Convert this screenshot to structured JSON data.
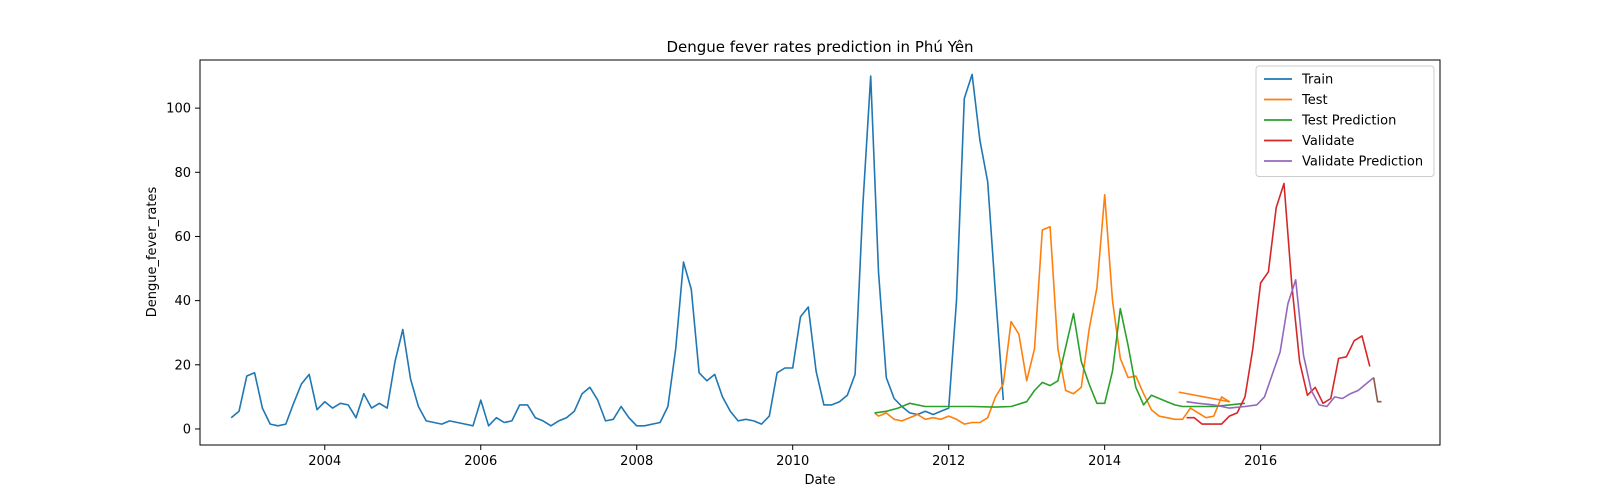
{
  "chart_data": {
    "type": "line",
    "title": "Dengue fever rates prediction in Phú Yên",
    "xlabel": "Date",
    "ylabel": "Dengue_fever_rates",
    "xlim": [
      2002.4,
      2018.3
    ],
    "ylim": [
      -5,
      115
    ],
    "x_ticks": [
      2004,
      2006,
      2008,
      2010,
      2012,
      2014,
      2016
    ],
    "y_ticks": [
      0,
      20,
      40,
      60,
      80,
      100
    ],
    "grid": false,
    "legend_position": "top-right",
    "series": [
      {
        "name": "Train",
        "color": "#1f77b4",
        "points": [
          [
            2002.8,
            3.5
          ],
          [
            2002.9,
            5.5
          ],
          [
            2003.0,
            16.5
          ],
          [
            2003.1,
            17.5
          ],
          [
            2003.2,
            6.5
          ],
          [
            2003.3,
            1.5
          ],
          [
            2003.4,
            1.0
          ],
          [
            2003.5,
            1.5
          ],
          [
            2003.6,
            8.0
          ],
          [
            2003.7,
            14.0
          ],
          [
            2003.8,
            17.0
          ],
          [
            2003.9,
            6.0
          ],
          [
            2004.0,
            8.5
          ],
          [
            2004.1,
            6.5
          ],
          [
            2004.2,
            8.0
          ],
          [
            2004.3,
            7.5
          ],
          [
            2004.4,
            3.5
          ],
          [
            2004.5,
            11.0
          ],
          [
            2004.6,
            6.5
          ],
          [
            2004.7,
            8.0
          ],
          [
            2004.8,
            6.5
          ],
          [
            2004.9,
            21.0
          ],
          [
            2005.0,
            31.0
          ],
          [
            2005.1,
            15.5
          ],
          [
            2005.2,
            7.0
          ],
          [
            2005.3,
            2.5
          ],
          [
            2005.4,
            2.0
          ],
          [
            2005.5,
            1.5
          ],
          [
            2005.6,
            2.5
          ],
          [
            2005.7,
            2.0
          ],
          [
            2005.8,
            1.5
          ],
          [
            2005.9,
            1.0
          ],
          [
            2006.0,
            9.0
          ],
          [
            2006.1,
            1.0
          ],
          [
            2006.2,
            3.5
          ],
          [
            2006.3,
            2.0
          ],
          [
            2006.4,
            2.5
          ],
          [
            2006.5,
            7.5
          ],
          [
            2006.6,
            7.5
          ],
          [
            2006.7,
            3.5
          ],
          [
            2006.8,
            2.5
          ],
          [
            2006.9,
            1.0
          ],
          [
            2007.0,
            2.5
          ],
          [
            2007.1,
            3.5
          ],
          [
            2007.2,
            5.5
          ],
          [
            2007.3,
            11.0
          ],
          [
            2007.4,
            13.0
          ],
          [
            2007.5,
            9.0
          ],
          [
            2007.6,
            2.5
          ],
          [
            2007.7,
            3.0
          ],
          [
            2007.8,
            7.0
          ],
          [
            2007.9,
            3.5
          ],
          [
            2008.0,
            1.0
          ],
          [
            2008.1,
            1.0
          ],
          [
            2008.2,
            1.5
          ],
          [
            2008.3,
            2.0
          ],
          [
            2008.4,
            7.0
          ],
          [
            2008.5,
            25.0
          ],
          [
            2008.6,
            52.0
          ],
          [
            2008.7,
            43.5
          ],
          [
            2008.8,
            17.5
          ],
          [
            2008.9,
            15.0
          ],
          [
            2009.0,
            17.0
          ],
          [
            2009.1,
            10.0
          ],
          [
            2009.2,
            5.5
          ],
          [
            2009.3,
            2.5
          ],
          [
            2009.4,
            3.0
          ],
          [
            2009.5,
            2.5
          ],
          [
            2009.6,
            1.5
          ],
          [
            2009.7,
            4.0
          ],
          [
            2009.8,
            17.5
          ],
          [
            2009.9,
            19.0
          ],
          [
            2010.0,
            19.0
          ],
          [
            2010.1,
            35.0
          ],
          [
            2010.2,
            38.0
          ],
          [
            2010.3,
            18.0
          ],
          [
            2010.4,
            7.5
          ],
          [
            2010.5,
            7.5
          ],
          [
            2010.6,
            8.5
          ],
          [
            2010.7,
            10.5
          ],
          [
            2010.8,
            17.0
          ],
          [
            2010.9,
            70.0
          ],
          [
            2011.0,
            110.0
          ],
          [
            2011.1,
            49.0
          ],
          [
            2011.2,
            16.0
          ],
          [
            2011.3,
            9.5
          ],
          [
            2011.4,
            7.0
          ],
          [
            2011.5,
            5.0
          ],
          [
            2011.6,
            4.5
          ],
          [
            2011.7,
            5.5
          ],
          [
            2011.8,
            4.5
          ],
          [
            2011.9,
            5.5
          ],
          [
            2012.0,
            6.5
          ],
          [
            2012.1,
            40.0
          ],
          [
            2012.2,
            103.0
          ],
          [
            2012.3,
            110.5
          ],
          [
            2012.4,
            90.0
          ],
          [
            2012.5,
            77.0
          ],
          [
            2012.6,
            42.0
          ],
          [
            2012.7,
            9.0
          ]
        ]
      },
      {
        "name": "Test",
        "color": "#ff7f0e",
        "points": [
          [
            2011.05,
            5.0
          ],
          [
            2011.1,
            4.0
          ],
          [
            2011.2,
            5.0
          ],
          [
            2011.3,
            3.0
          ],
          [
            2011.4,
            2.5
          ],
          [
            2011.5,
            3.5
          ],
          [
            2011.6,
            4.5
          ],
          [
            2011.7,
            3.0
          ],
          [
            2011.8,
            3.5
          ],
          [
            2011.9,
            3.0
          ],
          [
            2012.0,
            4.0
          ],
          [
            2012.1,
            3.0
          ],
          [
            2012.2,
            1.5
          ],
          [
            2012.3,
            2.0
          ],
          [
            2012.4,
            2.0
          ],
          [
            2012.5,
            3.5
          ],
          [
            2012.6,
            10.0
          ],
          [
            2012.7,
            14.0
          ],
          [
            2012.8,
            33.5
          ],
          [
            2012.9,
            29.5
          ],
          [
            2013.0,
            15.0
          ],
          [
            2013.1,
            25.0
          ],
          [
            2013.2,
            62.0
          ],
          [
            2013.3,
            63.0
          ],
          [
            2013.4,
            25.0
          ],
          [
            2013.5,
            12.0
          ],
          [
            2013.6,
            11.0
          ],
          [
            2013.7,
            13.0
          ],
          [
            2013.8,
            31.0
          ],
          [
            2013.9,
            44.0
          ],
          [
            2014.0,
            73.0
          ],
          [
            2014.1,
            40.0
          ],
          [
            2014.2,
            22.0
          ],
          [
            2014.3,
            16.0
          ],
          [
            2014.4,
            16.5
          ],
          [
            2014.5,
            11.0
          ],
          [
            2014.6,
            6.0
          ],
          [
            2014.7,
            4.0
          ],
          [
            2014.8,
            3.5
          ],
          [
            2014.9,
            3.0
          ],
          [
            2015.0,
            3.0
          ],
          [
            2015.1,
            6.5
          ],
          [
            2015.2,
            5.0
          ],
          [
            2015.3,
            3.5
          ],
          [
            2015.4,
            4.0
          ],
          [
            2015.5,
            10.0
          ],
          [
            2015.6,
            8.5
          ],
          [
            2014.95,
            11.5
          ]
        ]
      },
      {
        "name": "Test Prediction",
        "color": "#2ca02c",
        "points": [
          [
            2011.05,
            5.0
          ],
          [
            2011.2,
            5.5
          ],
          [
            2011.35,
            6.5
          ],
          [
            2011.5,
            8.0
          ],
          [
            2011.7,
            7.0
          ],
          [
            2012.0,
            7.0
          ],
          [
            2012.3,
            7.0
          ],
          [
            2012.6,
            6.8
          ],
          [
            2012.8,
            7.0
          ],
          [
            2013.0,
            8.5
          ],
          [
            2013.1,
            12.0
          ],
          [
            2013.2,
            14.5
          ],
          [
            2013.3,
            13.5
          ],
          [
            2013.4,
            15.0
          ],
          [
            2013.5,
            25.5
          ],
          [
            2013.6,
            36.0
          ],
          [
            2013.7,
            21.0
          ],
          [
            2013.8,
            14.0
          ],
          [
            2013.9,
            8.0
          ],
          [
            2014.0,
            8.0
          ],
          [
            2014.1,
            18.0
          ],
          [
            2014.2,
            37.5
          ],
          [
            2014.3,
            26.0
          ],
          [
            2014.4,
            13.0
          ],
          [
            2014.5,
            7.5
          ],
          [
            2014.6,
            10.5
          ],
          [
            2014.7,
            9.5
          ],
          [
            2014.8,
            8.5
          ],
          [
            2014.9,
            7.5
          ],
          [
            2015.0,
            7.0
          ],
          [
            2015.2,
            7.0
          ],
          [
            2015.4,
            7.0
          ],
          [
            2015.6,
            7.5
          ],
          [
            2015.8,
            8.0
          ]
        ]
      },
      {
        "name": "Validate",
        "color": "#d62728",
        "points": [
          [
            2015.05,
            3.5
          ],
          [
            2015.15,
            3.5
          ],
          [
            2015.25,
            1.5
          ],
          [
            2015.35,
            1.5
          ],
          [
            2015.5,
            1.5
          ],
          [
            2015.6,
            4.0
          ],
          [
            2015.7,
            5.0
          ],
          [
            2015.8,
            10.0
          ],
          [
            2015.9,
            25.0
          ],
          [
            2016.0,
            45.5
          ],
          [
            2016.1,
            49.0
          ],
          [
            2016.2,
            69.0
          ],
          [
            2016.3,
            76.5
          ],
          [
            2016.4,
            45.0
          ],
          [
            2016.5,
            21.0
          ],
          [
            2016.6,
            10.5
          ],
          [
            2016.7,
            13.0
          ],
          [
            2016.8,
            8.0
          ],
          [
            2016.9,
            9.5
          ],
          [
            2017.0,
            22.0
          ],
          [
            2017.1,
            22.5
          ],
          [
            2017.2,
            27.5
          ],
          [
            2017.3,
            29.0
          ],
          [
            2017.4,
            19.5
          ]
        ]
      },
      {
        "name": "Validate Prediction",
        "color": "#9467bd",
        "points": [
          [
            2015.05,
            8.5
          ],
          [
            2015.2,
            8.0
          ],
          [
            2015.4,
            7.5
          ],
          [
            2015.6,
            6.5
          ],
          [
            2015.8,
            7.0
          ],
          [
            2015.95,
            7.5
          ],
          [
            2016.05,
            10.0
          ],
          [
            2016.15,
            17.0
          ],
          [
            2016.25,
            24.0
          ],
          [
            2016.35,
            39.0
          ],
          [
            2016.45,
            46.5
          ],
          [
            2016.55,
            23.0
          ],
          [
            2016.65,
            12.0
          ],
          [
            2016.75,
            7.5
          ],
          [
            2016.85,
            7.0
          ],
          [
            2016.95,
            10.0
          ],
          [
            2017.05,
            9.5
          ],
          [
            2017.15,
            11.0
          ],
          [
            2017.25,
            12.0
          ],
          [
            2017.35,
            14.0
          ],
          [
            2017.45,
            16.0
          ]
        ]
      },
      {
        "color": "#8c564b",
        "points": [
          [
            2017.45,
            16.0
          ],
          [
            2017.5,
            8.5
          ],
          [
            2017.55,
            8.5
          ]
        ]
      }
    ]
  }
}
